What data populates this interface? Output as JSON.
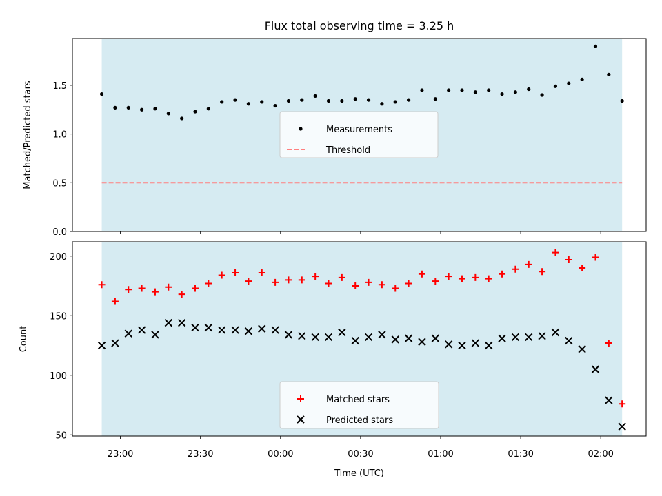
{
  "title": "Flux total observing time = 3.25 h",
  "colors": {
    "band": "#add8e6",
    "measurement": "#000000",
    "threshold": "#ff7f7f",
    "matched": "#ff0000",
    "predicted": "#000000"
  },
  "chart_data": [
    {
      "type": "scatter",
      "ylabel": "Matched/Predicted stars",
      "xlabel": "",
      "ylim": [
        0,
        1.98
      ],
      "yticks": [
        {
          "value": 0.0,
          "label": "0.0"
        },
        {
          "value": 0.5,
          "label": "0.5"
        },
        {
          "value": 1.0,
          "label": "1.0"
        },
        {
          "value": 1.5,
          "label": "1.5"
        }
      ],
      "xlim": [
        "22:42",
        "02:17"
      ],
      "shaded_span": [
        "22:53",
        "02:08"
      ],
      "legend_location": "center",
      "series": [
        {
          "name": "Measurements",
          "marker": "dot",
          "x": [
            "22:53",
            "22:58",
            "23:03",
            "23:08",
            "23:13",
            "23:18",
            "23:23",
            "23:28",
            "23:33",
            "23:38",
            "23:43",
            "23:48",
            "23:53",
            "23:58",
            "00:03",
            "00:08",
            "00:13",
            "00:18",
            "00:23",
            "00:28",
            "00:33",
            "00:38",
            "00:43",
            "00:48",
            "00:53",
            "00:58",
            "01:03",
            "01:08",
            "01:13",
            "01:18",
            "01:23",
            "01:28",
            "01:33",
            "01:38",
            "01:43",
            "01:48",
            "01:53",
            "01:58",
            "02:03",
            "02:08"
          ],
          "y": [
            1.41,
            1.27,
            1.27,
            1.25,
            1.26,
            1.21,
            1.16,
            1.23,
            1.26,
            1.33,
            1.35,
            1.31,
            1.33,
            1.29,
            1.34,
            1.35,
            1.39,
            1.34,
            1.34,
            1.36,
            1.35,
            1.31,
            1.33,
            1.35,
            1.45,
            1.36,
            1.45,
            1.45,
            1.43,
            1.45,
            1.41,
            1.43,
            1.46,
            1.4,
            1.49,
            1.52,
            1.56,
            1.9,
            1.61,
            1.34
          ]
        },
        {
          "name": "Threshold",
          "style": "dashed",
          "x": [
            "22:53",
            "02:08"
          ],
          "y": [
            0.5,
            0.5
          ]
        }
      ]
    },
    {
      "type": "scatter",
      "ylabel": "Count",
      "xlabel": "Time (UTC)",
      "ylim": [
        49,
        212
      ],
      "yticks": [
        {
          "value": 50,
          "label": "50"
        },
        {
          "value": 100,
          "label": "100"
        },
        {
          "value": 150,
          "label": "150"
        },
        {
          "value": 200,
          "label": "200"
        }
      ],
      "xlim": [
        "22:42",
        "02:17"
      ],
      "xticks": [
        {
          "value": "23:00",
          "label": "23:00"
        },
        {
          "value": "23:30",
          "label": "23:30"
        },
        {
          "value": "00:00",
          "label": "00:00"
        },
        {
          "value": "00:30",
          "label": "00:30"
        },
        {
          "value": "01:00",
          "label": "01:00"
        },
        {
          "value": "01:30",
          "label": "01:30"
        },
        {
          "value": "02:00",
          "label": "02:00"
        }
      ],
      "shaded_span": [
        "22:53",
        "02:08"
      ],
      "legend_location": "lower center",
      "series": [
        {
          "name": "Matched stars",
          "marker": "plus",
          "x": [
            "22:53",
            "22:58",
            "23:03",
            "23:08",
            "23:13",
            "23:18",
            "23:23",
            "23:28",
            "23:33",
            "23:38",
            "23:43",
            "23:48",
            "23:53",
            "23:58",
            "00:03",
            "00:08",
            "00:13",
            "00:18",
            "00:23",
            "00:28",
            "00:33",
            "00:38",
            "00:43",
            "00:48",
            "00:53",
            "00:58",
            "01:03",
            "01:08",
            "01:13",
            "01:18",
            "01:23",
            "01:28",
            "01:33",
            "01:38",
            "01:43",
            "01:48",
            "01:53",
            "01:58",
            "02:03",
            "02:08"
          ],
          "y": [
            176,
            162,
            172,
            173,
            170,
            174,
            168,
            173,
            177,
            184,
            186,
            179,
            186,
            178,
            180,
            180,
            183,
            177,
            182,
            175,
            178,
            176,
            173,
            177,
            185,
            179,
            183,
            181,
            182,
            181,
            185,
            189,
            193,
            187,
            203,
            197,
            190,
            199,
            127,
            76
          ]
        },
        {
          "name": "Predicted stars",
          "marker": "x",
          "x": [
            "22:53",
            "22:58",
            "23:03",
            "23:08",
            "23:13",
            "23:18",
            "23:23",
            "23:28",
            "23:33",
            "23:38",
            "23:43",
            "23:48",
            "23:53",
            "23:58",
            "00:03",
            "00:08",
            "00:13",
            "00:18",
            "00:23",
            "00:28",
            "00:33",
            "00:38",
            "00:43",
            "00:48",
            "00:53",
            "00:58",
            "01:03",
            "01:08",
            "01:13",
            "01:18",
            "01:23",
            "01:28",
            "01:33",
            "01:38",
            "01:43",
            "01:48",
            "01:53",
            "01:58",
            "02:03",
            "02:08"
          ],
          "y": [
            125,
            127,
            135,
            138,
            134,
            144,
            144,
            140,
            140,
            138,
            138,
            137,
            139,
            138,
            134,
            133,
            132,
            132,
            136,
            129,
            132,
            134,
            130,
            131,
            128,
            131,
            126,
            125,
            127,
            125,
            131,
            132,
            132,
            133,
            136,
            129,
            122,
            105,
            79,
            57
          ]
        }
      ]
    }
  ]
}
